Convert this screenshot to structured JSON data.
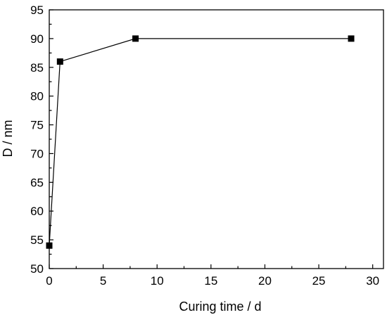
{
  "chart_data": {
    "type": "line",
    "title": "",
    "xlabel": "Curing time / d",
    "ylabel": "D / nm",
    "xlim": [
      0,
      31
    ],
    "ylim": [
      50,
      95
    ],
    "xticks": [
      0,
      5,
      10,
      15,
      20,
      25,
      30
    ],
    "yticks": [
      50,
      55,
      60,
      65,
      70,
      75,
      80,
      85,
      90,
      95
    ],
    "grid": false,
    "legend": "none",
    "marker": "square",
    "series": [
      {
        "x": [
          0,
          1,
          8,
          28
        ],
        "y": [
          54,
          86,
          90,
          90
        ],
        "color": "#000000"
      }
    ]
  }
}
